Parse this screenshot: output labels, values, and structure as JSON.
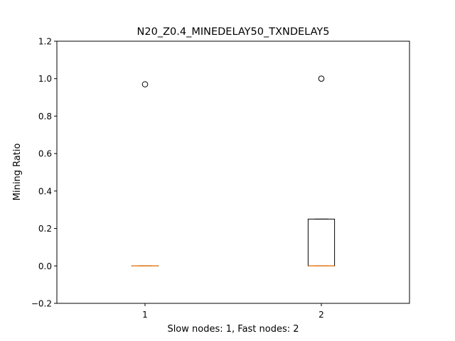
{
  "chart_data": {
    "type": "box",
    "title": "N20_Z0.4_MINEDELAY50_TXNDELAY5",
    "xlabel": "Slow nodes: 1, Fast nodes: 2",
    "ylabel": "Mining Ratio",
    "ylim": [
      -0.2,
      1.2
    ],
    "xlim": [
      0.5,
      2.5
    ],
    "yticks": [
      -0.2,
      0.0,
      0.2,
      0.4,
      0.6,
      0.8,
      1.0,
      1.2
    ],
    "ytick_labels": [
      "−0.2",
      "0.0",
      "0.2",
      "0.4",
      "0.6",
      "0.8",
      "1.0",
      "1.2"
    ],
    "categories": [
      "1",
      "2"
    ],
    "boxes": [
      {
        "position": 1,
        "whisker_low": 0.0,
        "q1": 0.0,
        "median": 0.0,
        "q3": 0.0,
        "whisker_high": 0.0,
        "fliers": [
          0.97
        ]
      },
      {
        "position": 2,
        "whisker_low": 0.0,
        "q1": 0.0,
        "median": 0.0,
        "q3": 0.25,
        "whisker_high": 0.25,
        "fliers": [
          1.0
        ]
      }
    ],
    "grid": false,
    "colors": {
      "box": "#000000",
      "median": "#ff7f0e",
      "flier": "#000000"
    }
  }
}
